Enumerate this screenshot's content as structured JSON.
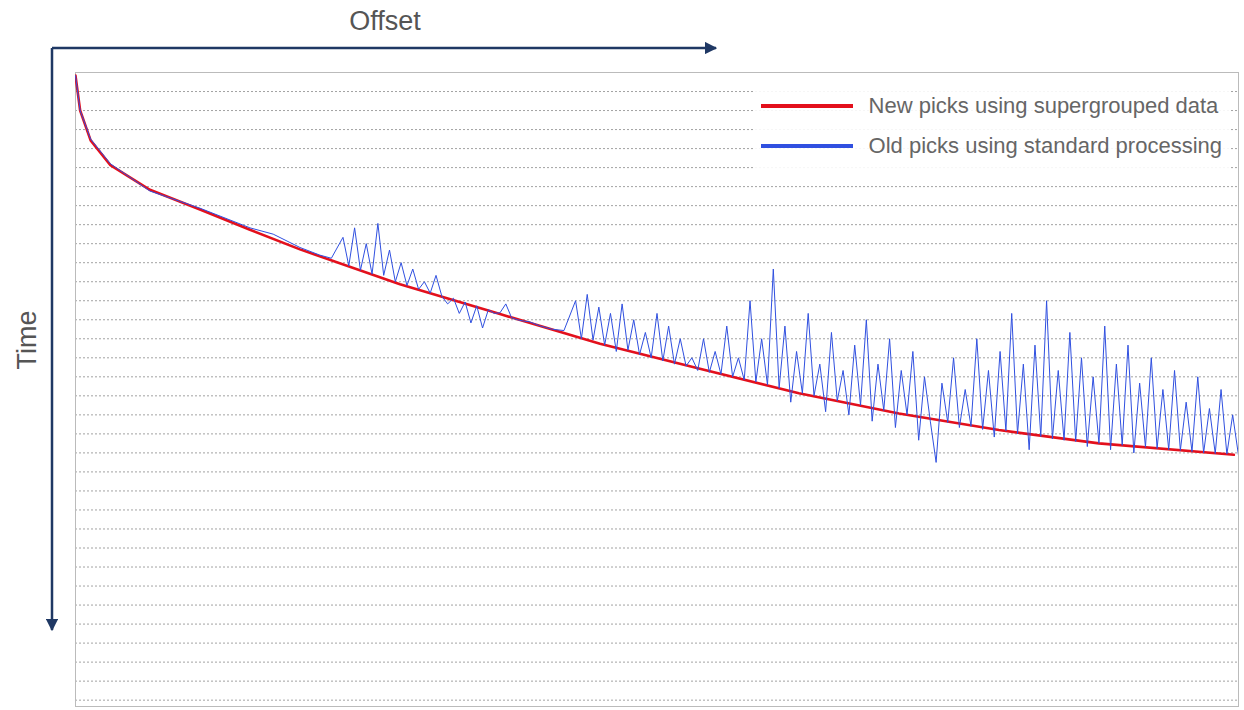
{
  "chart_data": {
    "type": "line",
    "x_label": "Offset",
    "y_label": "Time",
    "xlim": [
      0,
      100
    ],
    "ylim": [
      0,
      100
    ],
    "xticks": [],
    "yticks": [
      0,
      3,
      6,
      9,
      12,
      15,
      18,
      21,
      24,
      27,
      30,
      33,
      36,
      39,
      42,
      45,
      48,
      51,
      54,
      57,
      60,
      63,
      66,
      69,
      72,
      75,
      78,
      81,
      84,
      87,
      90,
      93,
      96,
      99
    ],
    "grid": true,
    "tick_labels": false,
    "legend": "top-right",
    "series": [
      {
        "name": "New picks using supergrouped data",
        "color": "#e3101c",
        "x": [
          0,
          0.4,
          1.3,
          3,
          6.4,
          10.7,
          15,
          19.3,
          27.9,
          36.5,
          45.1,
          53.6,
          62.2,
          70.8,
          79.4,
          88,
          99.6
        ],
        "values": [
          0.5,
          6,
          10.7,
          14.6,
          18.5,
          21.6,
          24.8,
          27.9,
          33.4,
          38.1,
          42.8,
          46.7,
          50.6,
          53.8,
          56.4,
          58.5,
          60.3
        ]
      },
      {
        "name": "Old picks using standard processing",
        "color": "#3050e0",
        "x": [
          0,
          0.4,
          1.3,
          3,
          6.4,
          10.7,
          15,
          17,
          19.3,
          21,
          22,
          23,
          23.5,
          24,
          24.5,
          25,
          25.5,
          26,
          26.5,
          27,
          27.5,
          28,
          28.5,
          29,
          29.5,
          30,
          30.5,
          31,
          31.5,
          32,
          32.5,
          33,
          33.5,
          34,
          34.5,
          35,
          35.5,
          36,
          36.5,
          37,
          37.5,
          38,
          38.5,
          39,
          40,
          41,
          42,
          43,
          43.5,
          44,
          44.5,
          45,
          45.5,
          46,
          46.5,
          47,
          47.5,
          48,
          48.5,
          49,
          49.5,
          50,
          50.5,
          51,
          51.5,
          52,
          52.5,
          53,
          53.5,
          54,
          54.5,
          55,
          55.5,
          56,
          56.5,
          57,
          57.5,
          58,
          58.5,
          59,
          59.5,
          60,
          60.5,
          61,
          61.5,
          62,
          62.5,
          63,
          63.5,
          64,
          64.5,
          65,
          65.5,
          66,
          66.5,
          67,
          67.5,
          68,
          68.5,
          69,
          69.5,
          70,
          70.5,
          71,
          71.5,
          72,
          72.5,
          73,
          73.5,
          74,
          74.5,
          75,
          75.5,
          76,
          76.5,
          77,
          77.5,
          78,
          78.5,
          79,
          79.5,
          80,
          80.5,
          81,
          81.5,
          82,
          82.5,
          83,
          83.5,
          84,
          84.5,
          85,
          85.5,
          86,
          86.5,
          87,
          87.5,
          88,
          88.5,
          89,
          89.5,
          90,
          90.5,
          91,
          91.5,
          92,
          92.5,
          93,
          93.5,
          94,
          94.5,
          95,
          95.5,
          96,
          96.5,
          97,
          97.5,
          98,
          98.5,
          99,
          99.5,
          100
        ],
        "values": [
          0.5,
          6,
          10.5,
          14.4,
          18.7,
          21.4,
          24.5,
          25.5,
          27.6,
          28.8,
          29.3,
          26,
          30.5,
          24.5,
          31.2,
          27,
          31.8,
          23.8,
          32,
          28,
          33,
          30,
          33.6,
          31,
          34.2,
          33,
          34.8,
          32,
          35.3,
          36.5,
          35.6,
          38,
          36.2,
          39.5,
          36.8,
          40.3,
          37.4,
          38,
          37.9,
          36.5,
          38.7,
          39,
          39.2,
          39.3,
          40,
          40.5,
          40.7,
          36,
          42,
          35,
          42.2,
          37,
          43,
          38,
          44,
          36.5,
          43.8,
          39,
          44.5,
          41,
          45,
          38,
          45.5,
          40,
          46,
          42,
          46.3,
          45,
          47,
          42,
          47.3,
          44,
          47.6,
          40,
          48,
          45,
          48.5,
          36,
          48.8,
          42,
          49.3,
          31,
          49.8,
          40,
          52,
          44,
          50.6,
          38,
          51,
          46,
          53.5,
          41,
          51.8,
          47,
          54,
          43,
          52.5,
          39,
          55,
          46,
          53.3,
          42,
          56,
          47,
          54,
          44,
          58,
          48,
          55,
          61.5,
          49,
          55.2,
          45,
          56,
          50,
          55.8,
          42,
          56.3,
          47,
          57.5,
          44,
          56.5,
          38,
          57,
          46,
          59.5,
          43,
          57.4,
          36,
          57.8,
          47,
          58,
          41,
          58.2,
          45,
          59,
          48,
          58.5,
          40,
          59.5,
          46,
          58.8,
          43,
          60,
          49,
          59.1,
          45,
          59.3,
          50,
          59.5,
          47,
          59.6,
          52,
          59.8,
          48,
          60,
          53,
          60.1,
          50,
          60.2,
          54,
          60.4
        ]
      }
    ]
  }
}
